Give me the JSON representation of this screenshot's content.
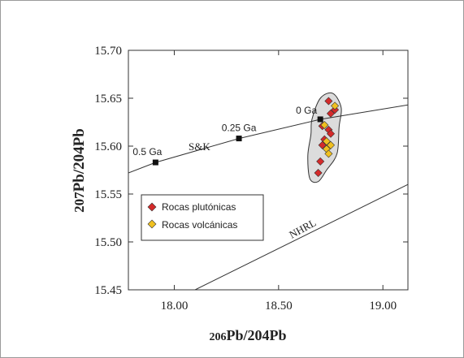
{
  "chart_data": {
    "type": "scatter",
    "xlabel_num": "206",
    "xlabel_rest": "Pb/204Pb",
    "ylabel_num": "207",
    "ylabel_rest": "Pb/204Pb",
    "xlim": [
      17.78,
      19.12
    ],
    "ylim": [
      15.45,
      15.7
    ],
    "xticks": [
      18.0,
      18.5,
      19.0
    ],
    "xtick_labels": [
      "18.00",
      "18.50",
      "19.00"
    ],
    "yticks": [
      15.45,
      15.5,
      15.55,
      15.6,
      15.65,
      15.7
    ],
    "ytick_labels": [
      "15.45",
      "15.50",
      "15.55",
      "15.60",
      "15.65",
      "15.70"
    ],
    "grid": false,
    "legend_position": "lower-left",
    "series": [
      {
        "name": "Rocas plutónicas",
        "color": "#d42a2a",
        "points": [
          {
            "x": 18.74,
            "y": 15.647
          },
          {
            "x": 18.77,
            "y": 15.638
          },
          {
            "x": 18.75,
            "y": 15.634
          },
          {
            "x": 18.71,
            "y": 15.621
          },
          {
            "x": 18.74,
            "y": 15.617
          },
          {
            "x": 18.75,
            "y": 15.613
          },
          {
            "x": 18.72,
            "y": 15.607
          },
          {
            "x": 18.71,
            "y": 15.601
          },
          {
            "x": 18.7,
            "y": 15.584
          },
          {
            "x": 18.69,
            "y": 15.572
          }
        ]
      },
      {
        "name": "Rocas volcánicas",
        "color": "#f0c020",
        "points": [
          {
            "x": 18.77,
            "y": 15.642
          },
          {
            "x": 18.72,
            "y": 15.622
          },
          {
            "x": 18.73,
            "y": 15.605
          },
          {
            "x": 18.75,
            "y": 15.601
          },
          {
            "x": 18.73,
            "y": 15.597
          },
          {
            "x": 18.74,
            "y": 15.592
          }
        ]
      }
    ],
    "reference_lines": [
      {
        "name": "S&K",
        "points": [
          {
            "x": 17.78,
            "y": 15.572
          },
          {
            "x": 17.91,
            "y": 15.583
          },
          {
            "x": 18.31,
            "y": 15.608
          },
          {
            "x": 18.7,
            "y": 15.628
          },
          {
            "x": 19.12,
            "y": 15.643
          }
        ]
      },
      {
        "name": "NHRL",
        "points": [
          {
            "x": 18.1,
            "y": 15.45
          },
          {
            "x": 19.12,
            "y": 15.56
          }
        ]
      }
    ],
    "age_markers": [
      {
        "label": "0.5 Ga",
        "x": 17.91,
        "y": 15.583
      },
      {
        "label": "0.25 Ga",
        "x": 18.31,
        "y": 15.608
      },
      {
        "label": "0 Ga",
        "x": 18.7,
        "y": 15.628
      }
    ],
    "field_outline": [
      {
        "x": 18.66,
        "y": 15.628
      },
      {
        "x": 18.7,
        "y": 15.65
      },
      {
        "x": 18.76,
        "y": 15.655
      },
      {
        "x": 18.8,
        "y": 15.64
      },
      {
        "x": 18.79,
        "y": 15.62
      },
      {
        "x": 18.78,
        "y": 15.592
      },
      {
        "x": 18.73,
        "y": 15.575
      },
      {
        "x": 18.69,
        "y": 15.563
      },
      {
        "x": 18.65,
        "y": 15.566
      },
      {
        "x": 18.64,
        "y": 15.59
      },
      {
        "x": 18.655,
        "y": 15.612
      }
    ],
    "field_color": "#dcdcdc"
  }
}
